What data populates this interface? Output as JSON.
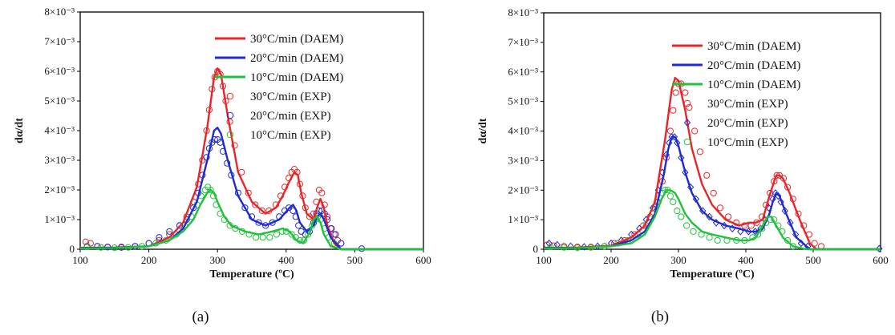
{
  "chart_data": [
    {
      "type": "line",
      "panel_label": "(a)",
      "xlabel": "Temperature (ºC)",
      "ylabel": "dα/dt",
      "xlim": [
        100,
        600
      ],
      "ylim": [
        0,
        0.008
      ],
      "xticks": [
        "100",
        "200",
        "300",
        "400",
        "500",
        "600"
      ],
      "yticks": [
        "0",
        "1×10⁻³",
        "2×10⁻³",
        "3×10⁻³",
        "4×10⁻³",
        "5×10⁻³",
        "6×10⁻³",
        "7×10⁻³",
        "8×10⁻³"
      ],
      "legend_position": "top-right",
      "series": [
        {
          "name": "30°C/min (DAEM)",
          "kind": "line",
          "color": "#e8262a",
          "x": [
            100,
            150,
            200,
            230,
            250,
            270,
            285,
            295,
            300,
            305,
            315,
            330,
            350,
            370,
            385,
            395,
            405,
            412,
            417,
            422,
            430,
            440,
            445,
            450,
            455,
            460,
            470,
            480,
            500,
            600
          ],
          "y": [
            5e-05,
            6e-05,
            0.0001,
            0.0004,
            0.0009,
            0.0021,
            0.0041,
            0.0058,
            0.0061,
            0.0059,
            0.0045,
            0.0026,
            0.0016,
            0.0012,
            0.0014,
            0.0018,
            0.0023,
            0.0026,
            0.0025,
            0.0019,
            0.0012,
            0.001,
            0.0014,
            0.0017,
            0.0014,
            0.0008,
            0.0002,
            0.0,
            0,
            0
          ]
        },
        {
          "name": "20°C/min (DAEM)",
          "kind": "line",
          "color": "#1f2bd0",
          "x": [
            100,
            150,
            200,
            230,
            250,
            270,
            285,
            295,
            300,
            305,
            315,
            330,
            350,
            370,
            390,
            405,
            410,
            415,
            420,
            430,
            440,
            445,
            450,
            455,
            465,
            480,
            600
          ],
          "y": [
            4e-05,
            5e-05,
            0.0001,
            0.0003,
            0.0007,
            0.0016,
            0.003,
            0.004,
            0.0041,
            0.0039,
            0.003,
            0.0018,
            0.001,
            0.0008,
            0.001,
            0.0014,
            0.0015,
            0.0013,
            0.0009,
            0.0006,
            0.0008,
            0.0011,
            0.0012,
            0.001,
            0.0004,
            0.0,
            0
          ]
        },
        {
          "name": "10°C/min (DAEM)",
          "kind": "line",
          "color": "#1fc23a",
          "x": [
            100,
            150,
            200,
            230,
            250,
            265,
            275,
            285,
            290,
            295,
            300,
            310,
            320,
            340,
            360,
            380,
            395,
            405,
            415,
            425,
            435,
            440,
            445,
            450,
            455,
            465,
            480,
            600
          ],
          "y": [
            3e-05,
            4e-05,
            0.0001,
            0.0003,
            0.0006,
            0.001,
            0.0015,
            0.0019,
            0.002,
            0.0019,
            0.0016,
            0.0011,
            0.0008,
            0.0006,
            0.0005,
            0.0006,
            0.0007,
            0.0006,
            0.0003,
            0.0002,
            0.0006,
            0.001,
            0.0011,
            0.0009,
            0.0005,
            0.0001,
            0,
            0
          ]
        },
        {
          "name": "30°C/min (EXP)",
          "kind": "marker",
          "marker": "circle",
          "color": "#e8262a",
          "x": [
            108,
            115,
            125,
            140,
            160,
            180,
            200,
            215,
            230,
            245,
            255,
            265,
            272,
            278,
            284,
            288,
            292,
            296,
            300,
            304,
            308,
            312,
            318,
            325,
            335,
            345,
            355,
            365,
            375,
            385,
            392,
            398,
            404,
            408,
            412,
            416,
            420,
            424,
            428,
            434,
            440,
            444,
            448,
            452,
            456,
            460,
            465,
            470,
            475,
            480
          ],
          "y": [
            0.00025,
            0.0002,
            0.0001,
            8e-05,
            8e-05,
            0.0001,
            0.0002,
            0.0003,
            0.0005,
            0.0008,
            0.0011,
            0.0016,
            0.0022,
            0.003,
            0.004,
            0.0047,
            0.0054,
            0.0058,
            0.006,
            0.0059,
            0.0055,
            0.005,
            0.0043,
            0.0035,
            0.0026,
            0.0019,
            0.0015,
            0.0013,
            0.0013,
            0.0015,
            0.0018,
            0.0021,
            0.0024,
            0.0026,
            0.0027,
            0.0026,
            0.0022,
            0.0018,
            0.0014,
            0.0011,
            0.0012,
            0.0016,
            0.002,
            0.0019,
            0.0015,
            0.0011,
            0.0007,
            0.0005,
            0.0003,
            0.0002
          ]
        },
        {
          "name": "20°C/min (EXP)",
          "kind": "marker",
          "marker": "circle",
          "color": "#1f2bd0",
          "x": [
            110,
            125,
            140,
            160,
            180,
            200,
            215,
            230,
            245,
            255,
            265,
            272,
            278,
            284,
            288,
            292,
            296,
            300,
            304,
            308,
            314,
            320,
            330,
            340,
            350,
            360,
            370,
            380,
            390,
            398,
            404,
            410,
            414,
            418,
            422,
            428,
            434,
            440,
            444,
            448,
            452,
            456,
            460,
            466,
            472,
            480,
            510
          ],
          "y": [
            0.0001,
            0.0001,
            7e-05,
            6e-05,
            0.0001,
            0.0002,
            0.0004,
            0.0006,
            0.0008,
            0.001,
            0.0014,
            0.0019,
            0.0025,
            0.0031,
            0.0034,
            0.0036,
            0.0037,
            0.0037,
            0.0036,
            0.0033,
            0.0029,
            0.0025,
            0.0019,
            0.0014,
            0.0011,
            0.0009,
            0.0008,
            0.0009,
            0.0011,
            0.0013,
            0.0014,
            0.0013,
            0.0011,
            0.0008,
            0.0006,
            0.0005,
            0.0006,
            0.0009,
            0.0012,
            0.0013,
            0.0013,
            0.0012,
            0.001,
            0.0007,
            0.0005,
            0.0002,
            2e-05
          ]
        },
        {
          "name": "10°C/min (EXP)",
          "kind": "marker",
          "marker": "circle",
          "color": "#1fc23a",
          "x": [
            110,
            130,
            150,
            170,
            190,
            210,
            225,
            240,
            252,
            262,
            270,
            276,
            282,
            286,
            290,
            294,
            298,
            304,
            310,
            318,
            326,
            336,
            346,
            356,
            366,
            376,
            386,
            394,
            400,
            408,
            414,
            420,
            426,
            432,
            438,
            442,
            446,
            450,
            456,
            462,
            470
          ],
          "y": [
            8e-05,
            6e-05,
            5e-05,
            6e-05,
            0.0001,
            0.0002,
            0.0003,
            0.0005,
            0.0008,
            0.0011,
            0.0015,
            0.0018,
            0.002,
            0.0021,
            0.002,
            0.0018,
            0.0015,
            0.0012,
            0.001,
            0.0008,
            0.0007,
            0.0006,
            0.0005,
            0.0004,
            0.0004,
            0.0004,
            0.0005,
            0.0006,
            0.0006,
            0.0005,
            0.0004,
            0.0003,
            0.0003,
            0.0005,
            0.0008,
            0.001,
            0.0011,
            0.001,
            0.0007,
            0.0004,
            0.0002
          ]
        }
      ]
    },
    {
      "type": "line",
      "panel_label": "(b)",
      "xlabel": "Temperature (ºC)",
      "ylabel": "dα/dt",
      "xlim": [
        100,
        600
      ],
      "ylim": [
        0,
        0.008
      ],
      "xticks": [
        "100",
        "200",
        "300",
        "400",
        "500",
        "600"
      ],
      "yticks": [
        "0",
        "1×10⁻³",
        "2×10⁻³",
        "3×10⁻³",
        "4×10⁻³",
        "5×10⁻³",
        "6×10⁻³",
        "7×10⁻³",
        "8×10⁻³"
      ],
      "legend_position": "top-right",
      "series": [
        {
          "name": "30°C/min (DAEM)",
          "kind": "line",
          "color": "#e8262a",
          "x": [
            100,
            150,
            200,
            230,
            250,
            265,
            280,
            290,
            295,
            300,
            310,
            320,
            335,
            350,
            370,
            390,
            405,
            415,
            425,
            435,
            445,
            450,
            455,
            465,
            480,
            495,
            505,
            600
          ],
          "y": [
            5e-05,
            6e-05,
            0.00012,
            0.0004,
            0.0008,
            0.0016,
            0.0037,
            0.0054,
            0.0058,
            0.0057,
            0.0047,
            0.0034,
            0.0022,
            0.0015,
            0.001,
            0.0008,
            0.0009,
            0.0009,
            0.001,
            0.0018,
            0.0025,
            0.0025,
            0.0024,
            0.0019,
            0.001,
            0.0002,
            0,
            0
          ]
        },
        {
          "name": "20°C/min (DAEM)",
          "kind": "line",
          "color": "#1f2bd0",
          "x": [
            100,
            150,
            200,
            230,
            250,
            265,
            278,
            285,
            290,
            295,
            300,
            310,
            320,
            335,
            350,
            370,
            390,
            405,
            415,
            425,
            435,
            440,
            445,
            450,
            460,
            475,
            495,
            600
          ],
          "y": [
            4e-05,
            5e-05,
            0.0001,
            0.0003,
            0.0006,
            0.0012,
            0.0025,
            0.0034,
            0.0038,
            0.0038,
            0.0035,
            0.0026,
            0.0019,
            0.0013,
            0.001,
            0.0008,
            0.0007,
            0.0006,
            0.0006,
            0.0007,
            0.0012,
            0.0016,
            0.0019,
            0.0018,
            0.0012,
            0.0004,
            0,
            0
          ]
        },
        {
          "name": "10°C/min (DAEM)",
          "kind": "line",
          "color": "#1fc23a",
          "x": [
            100,
            150,
            200,
            230,
            250,
            265,
            275,
            282,
            288,
            295,
            300,
            310,
            320,
            335,
            350,
            370,
            390,
            405,
            415,
            425,
            432,
            438,
            445,
            455,
            470,
            490,
            600
          ],
          "y": [
            3e-05,
            4e-05,
            0.0001,
            0.0002,
            0.0005,
            0.0011,
            0.0017,
            0.002,
            0.002,
            0.0019,
            0.0017,
            0.0012,
            0.0009,
            0.0006,
            0.0005,
            0.0004,
            0.0003,
            0.0003,
            0.0004,
            0.0008,
            0.0011,
            0.0011,
            0.0008,
            0.0004,
            0.0001,
            0,
            0
          ]
        },
        {
          "name": "30°C/min (EXP)",
          "kind": "marker",
          "marker": "circle",
          "color": "#e8262a",
          "x": [
            105,
            115,
            130,
            150,
            170,
            190,
            205,
            220,
            235,
            248,
            258,
            268,
            276,
            282,
            288,
            292,
            296,
            300,
            304,
            310,
            316,
            324,
            332,
            342,
            352,
            362,
            374,
            386,
            398,
            408,
            416,
            424,
            430,
            436,
            442,
            446,
            450,
            456,
            462,
            470,
            478,
            486,
            494,
            502,
            512
          ],
          "y": [
            0.00015,
            0.00012,
            0.0001,
            8e-05,
            8e-05,
            0.0001,
            0.0002,
            0.0003,
            0.0005,
            0.0008,
            0.0011,
            0.0016,
            0.0023,
            0.0031,
            0.004,
            0.0047,
            0.0053,
            0.0056,
            0.0056,
            0.0053,
            0.0048,
            0.004,
            0.0033,
            0.0025,
            0.0019,
            0.0014,
            0.0011,
            0.0009,
            0.0008,
            0.0008,
            0.0009,
            0.0011,
            0.0015,
            0.0019,
            0.0023,
            0.0025,
            0.0025,
            0.0024,
            0.0021,
            0.0017,
            0.0012,
            0.0008,
            0.0005,
            0.0002,
            0.0001
          ]
        },
        {
          "name": "20°C/min (EXP)",
          "kind": "marker",
          "marker": "diamond",
          "color": "#1f2bd0",
          "x": [
            108,
            120,
            140,
            160,
            180,
            200,
            215,
            230,
            242,
            252,
            262,
            270,
            276,
            282,
            286,
            290,
            294,
            298,
            304,
            310,
            318,
            326,
            336,
            346,
            356,
            368,
            380,
            392,
            404,
            414,
            422,
            428,
            434,
            440,
            444,
            448,
            452,
            458,
            466,
            474,
            482,
            492,
            598
          ],
          "y": [
            0.0002,
            0.00015,
            0.0001,
            8e-05,
            0.0001,
            0.0002,
            0.0003,
            0.0005,
            0.0007,
            0.001,
            0.0014,
            0.002,
            0.0026,
            0.0032,
            0.0036,
            0.0038,
            0.0038,
            0.0036,
            0.0031,
            0.0026,
            0.0021,
            0.0017,
            0.0013,
            0.0011,
            0.0009,
            0.0008,
            0.0007,
            0.0006,
            0.0006,
            0.0006,
            0.0007,
            0.001,
            0.0014,
            0.0017,
            0.0019,
            0.0018,
            0.0016,
            0.0013,
            0.0009,
            0.0005,
            0.0002,
            0.0001,
            2e-05
          ]
        },
        {
          "name": "10°C/min (EXP)",
          "kind": "marker",
          "marker": "circle",
          "color": "#1fc23a",
          "x": [
            110,
            130,
            150,
            170,
            190,
            210,
            225,
            240,
            252,
            262,
            270,
            276,
            280,
            284,
            288,
            292,
            298,
            304,
            312,
            322,
            334,
            346,
            358,
            372,
            386,
            398,
            410,
            418,
            424,
            430,
            436,
            442,
            448,
            454,
            462,
            470
          ],
          "y": [
            8e-05,
            6e-05,
            5e-05,
            6e-05,
            0.0001,
            0.0002,
            0.0003,
            0.0005,
            0.0008,
            0.0012,
            0.0016,
            0.0019,
            0.002,
            0.002,
            0.0018,
            0.0016,
            0.0013,
            0.0011,
            0.0008,
            0.0006,
            0.0005,
            0.0004,
            0.0003,
            0.0003,
            0.0003,
            0.0003,
            0.0004,
            0.0005,
            0.0007,
            0.0009,
            0.001,
            0.001,
            0.0008,
            0.0006,
            0.0003,
            0.0001
          ]
        }
      ]
    }
  ]
}
